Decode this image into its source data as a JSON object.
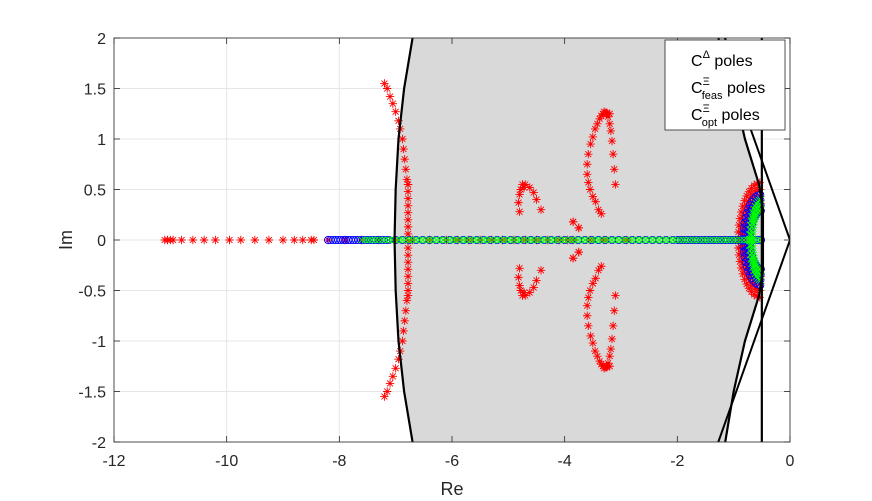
{
  "chart_data": {
    "type": "scatter",
    "title": "",
    "xlabel": "Re",
    "ylabel": "Im",
    "xlim": [
      -12,
      0
    ],
    "ylim": [
      -2,
      2
    ],
    "xticks": [
      -12,
      -10,
      -8,
      -6,
      -4,
      -2,
      0
    ],
    "yticks": [
      -2,
      -1.5,
      -1,
      -0.5,
      0,
      0.5,
      1,
      1.5,
      2
    ],
    "xtick_labels": [
      "-12",
      "-10",
      "-8",
      "-6",
      "-4",
      "-2",
      "0"
    ],
    "ytick_labels": [
      "-2",
      "-1.5",
      "-1",
      "-0.5",
      "0",
      "0.5",
      "1",
      "1.5",
      "2"
    ],
    "grid": true,
    "legend_position": "top-right",
    "legend": [
      {
        "base": "C",
        "sup": "Δ",
        "sub": "",
        "suffix": " poles",
        "marker": "asterisk",
        "color": "#ff0000"
      },
      {
        "base": "C",
        "sup": "Ξ",
        "sub": "feas",
        "suffix": " poles",
        "marker": "circle",
        "color": "#0000ff"
      },
      {
        "base": "C",
        "sup": "Ξ",
        "sub": "opt",
        "suffix": " poles",
        "marker": "cross",
        "color": "#00ff00"
      }
    ],
    "region": {
      "fill": "#d9d9d9",
      "boundary_color": "#000000",
      "left_boundary": [
        [
          -6.7,
          -2
        ],
        [
          -6.85,
          -1.5
        ],
        [
          -6.95,
          -1
        ],
        [
          -7.0,
          -0.5
        ],
        [
          -7.02,
          0
        ],
        [
          -7.0,
          0.5
        ],
        [
          -6.95,
          1
        ],
        [
          -6.85,
          1.5
        ],
        [
          -6.7,
          2
        ]
      ],
      "right_boundary": [
        [
          -1.15,
          -2
        ],
        [
          -1.0,
          -1.5
        ],
        [
          -0.8,
          -1
        ],
        [
          -0.55,
          -0.55
        ],
        [
          -0.48,
          -0.3
        ],
        [
          -0.48,
          0.3
        ],
        [
          -0.55,
          0.55
        ],
        [
          -0.8,
          1
        ],
        [
          -1.0,
          1.5
        ],
        [
          -1.15,
          2
        ]
      ]
    },
    "vertical_line": {
      "x": -0.5,
      "color": "#000000"
    },
    "wedge": [
      [
        -1.4,
        -2.2
      ],
      [
        0,
        0
      ],
      [
        -1.4,
        2.2
      ]
    ],
    "series": [
      {
        "name": "C^Δ poles",
        "marker": "asterisk",
        "color": "#ff0000",
        "real_axis": [
          -11.1,
          -11.05,
          -11.0,
          -10.95,
          -10.8,
          -10.6,
          -10.4,
          -10.2,
          -9.95,
          -9.75,
          -9.5,
          -9.25,
          -9.0,
          -8.8,
          -8.65,
          -8.5,
          -8.45,
          -8.2,
          -7.9,
          -7.6,
          -7.3,
          -7.0,
          -6.7,
          -6.4,
          -6.1,
          -5.9,
          -5.7,
          -5.5,
          -5.3,
          -5.1,
          -4.9,
          -4.7,
          -4.5,
          -4.3,
          -4.1,
          -3.95,
          -3.85,
          -3.55,
          -3.3,
          -2.9
        ],
        "branches": [
          {
            "x": [
              -7.2,
              -7.15,
              -7.1,
              -7.05,
              -7.0,
              -6.95,
              -6.92,
              -6.88,
              -6.86,
              -6.84,
              -6.82,
              -6.8,
              -6.78
            ],
            "y": [
              1.55,
              1.5,
              1.42,
              1.35,
              1.27,
              1.18,
              1.1,
              1.0,
              0.9,
              0.8,
              0.7,
              0.6,
              0.55
            ]
          },
          {
            "x": [
              -4.72,
              -4.78,
              -4.8,
              -4.82,
              -4.8,
              -4.75,
              -4.7,
              -4.62,
              -4.55,
              -4.5,
              -4.42
            ],
            "y": [
              0.52,
              0.5,
              0.45,
              0.37,
              0.28,
              0.55,
              0.55,
              0.52,
              0.47,
              0.4,
              0.3
            ]
          },
          {
            "x": [
              -3.2,
              -3.25,
              -3.28,
              -3.32,
              -3.35,
              -3.38,
              -3.42,
              -3.46,
              -3.5,
              -3.54,
              -3.58,
              -3.6,
              -3.6,
              -3.58,
              -3.55,
              -3.5,
              -3.45,
              -3.4,
              -3.35,
              -3.3,
              -3.26,
              -3.23,
              -3.2,
              -3.18,
              -3.16,
              -3.14,
              -3.12,
              -3.1
            ],
            "y": [
              1.25,
              1.26,
              1.26,
              1.25,
              1.23,
              1.2,
              1.15,
              1.1,
              1.02,
              0.95,
              0.85,
              0.75,
              0.65,
              0.57,
              0.5,
              0.43,
              0.38,
              0.3,
              0.26,
              1.27,
              1.25,
              1.22,
              1.15,
              1.08,
              0.98,
              0.85,
              0.7,
              0.55
            ]
          },
          {
            "x": [
              -3.85,
              -3.85,
              -3.75,
              -3.75
            ],
            "y": [
              0.18,
              -0.18,
              0.12,
              -0.12
            ]
          },
          {
            "cx": -0.5,
            "rx": 0.42,
            "ry": 0.57,
            "rings": 5,
            "angles_deg": [
              95,
              180
            ]
          }
        ]
      },
      {
        "name": "C^Ξ_feas poles",
        "marker": "circle",
        "color": "#0000ff",
        "real_axis_range": [
          -8.2,
          -0.5
        ],
        "dense_blocks": [
          [
            -8.2,
            -7.1
          ],
          [
            -2.0,
            -0.5
          ]
        ],
        "sparse_range": [
          -7.0,
          -2.0
        ],
        "arcs": {
          "cx": -0.5,
          "rx": 0.33,
          "ry": 0.45,
          "rings": 4
        }
      },
      {
        "name": "C^Ξ_opt poles",
        "marker": "cross",
        "color": "#00ff00",
        "real_axis_range": [
          -7.6,
          -0.5
        ],
        "arcs": {
          "cx": -0.5,
          "rx": 0.22,
          "ry": 0.4,
          "rings": 3
        }
      }
    ]
  }
}
